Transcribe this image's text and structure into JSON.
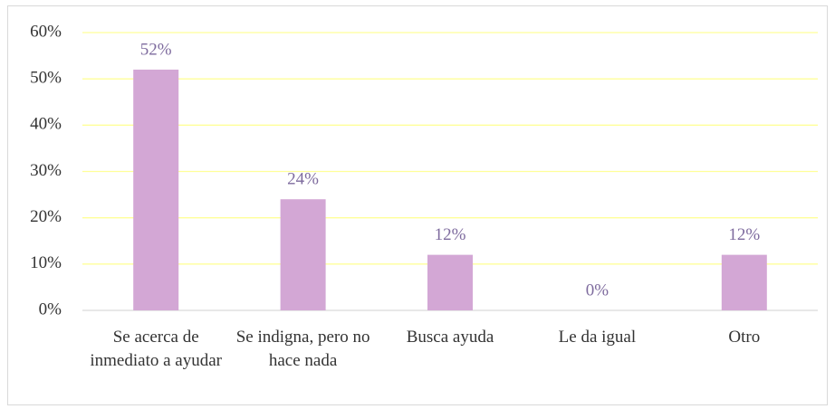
{
  "chart_data": {
    "type": "bar",
    "categories": [
      "Se acerca de inmediato a ayudar",
      "Se indigna, pero no hace nada",
      "Busca ayuda",
      "Le da igual",
      "Otro"
    ],
    "values": [
      52,
      24,
      12,
      0,
      12
    ],
    "value_labels": [
      "52%",
      "24%",
      "12%",
      "0%",
      "12%"
    ],
    "color": "#d3a7d5",
    "ylim": [
      0,
      60
    ],
    "yticks": [
      {
        "value": 0,
        "label": "0%"
      },
      {
        "value": 10,
        "label": "10%"
      },
      {
        "value": 20,
        "label": "20%"
      },
      {
        "value": 30,
        "label": "30%"
      },
      {
        "value": 40,
        "label": "40%"
      },
      {
        "value": 50,
        "label": "50%"
      },
      {
        "value": 60,
        "label": "60%"
      }
    ],
    "grid": true
  }
}
